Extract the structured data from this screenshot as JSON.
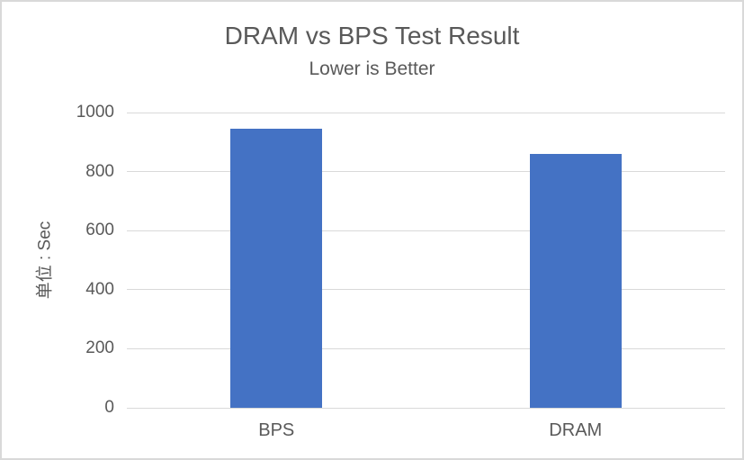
{
  "chart_data": {
    "type": "bar",
    "title": "DRAM vs BPS Test Result",
    "subtitle": "Lower is Better",
    "ylabel": "单位 : Sec",
    "xlabel": "",
    "categories": [
      "BPS",
      "DRAM"
    ],
    "values": [
      945,
      860
    ],
    "ylim": [
      0,
      1000
    ],
    "yticks": [
      0,
      200,
      400,
      600,
      800,
      1000
    ],
    "grid": true,
    "legend": "none",
    "colors": {
      "bar": "#4472C4",
      "text": "#595959",
      "gridline": "#D9D9D9",
      "frame_border": "#D9D9D9",
      "background": "#FFFFFF"
    }
  }
}
